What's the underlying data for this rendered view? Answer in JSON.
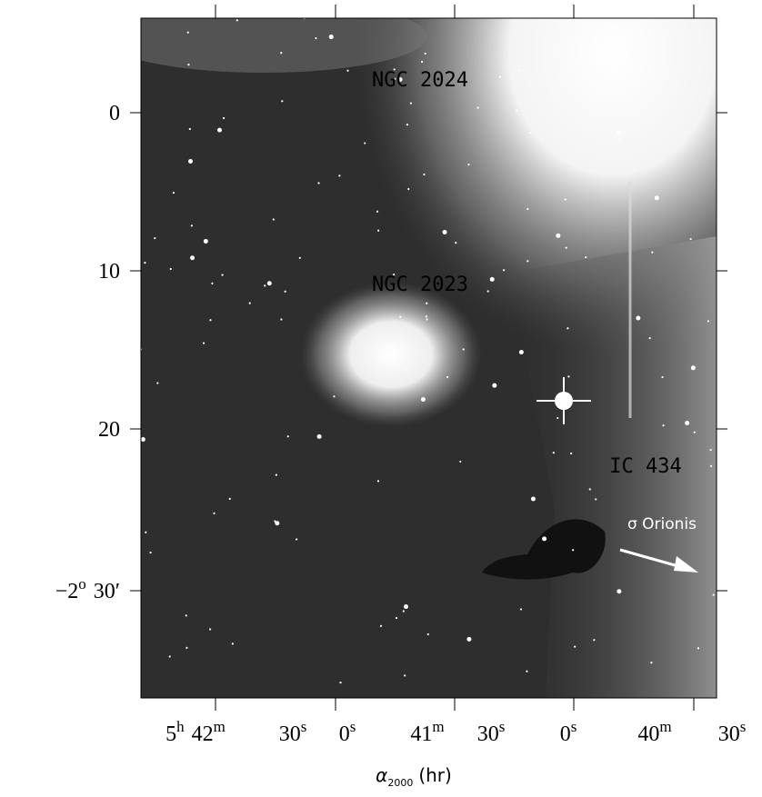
{
  "image": {
    "annotations": [
      "NGC 2024",
      "NGC 2023",
      "IC 434",
      "σ Orionis"
    ],
    "y_tick_labels": [
      {
        "parts": [
          "0"
        ]
      },
      {
        "parts": [
          "10"
        ]
      },
      {
        "parts": [
          "20"
        ]
      },
      {
        "parts": [
          "−2",
          "o",
          "30′"
        ]
      }
    ],
    "x_tick_labels": [
      {
        "parts": [
          "5",
          "h",
          "42",
          "m"
        ]
      },
      {
        "parts": [
          "30",
          "s"
        ]
      },
      {
        "parts": [
          "0",
          "s"
        ]
      },
      {
        "parts": [
          "41",
          "m"
        ]
      },
      {
        "parts": [
          "30",
          "s"
        ]
      },
      {
        "parts": [
          "0",
          "s"
        ]
      },
      {
        "parts": [
          "40",
          "m"
        ]
      },
      {
        "parts": [
          "30",
          "s"
        ]
      }
    ],
    "x_axis_label": [
      "α",
      "2000",
      "(hr)"
    ]
  }
}
